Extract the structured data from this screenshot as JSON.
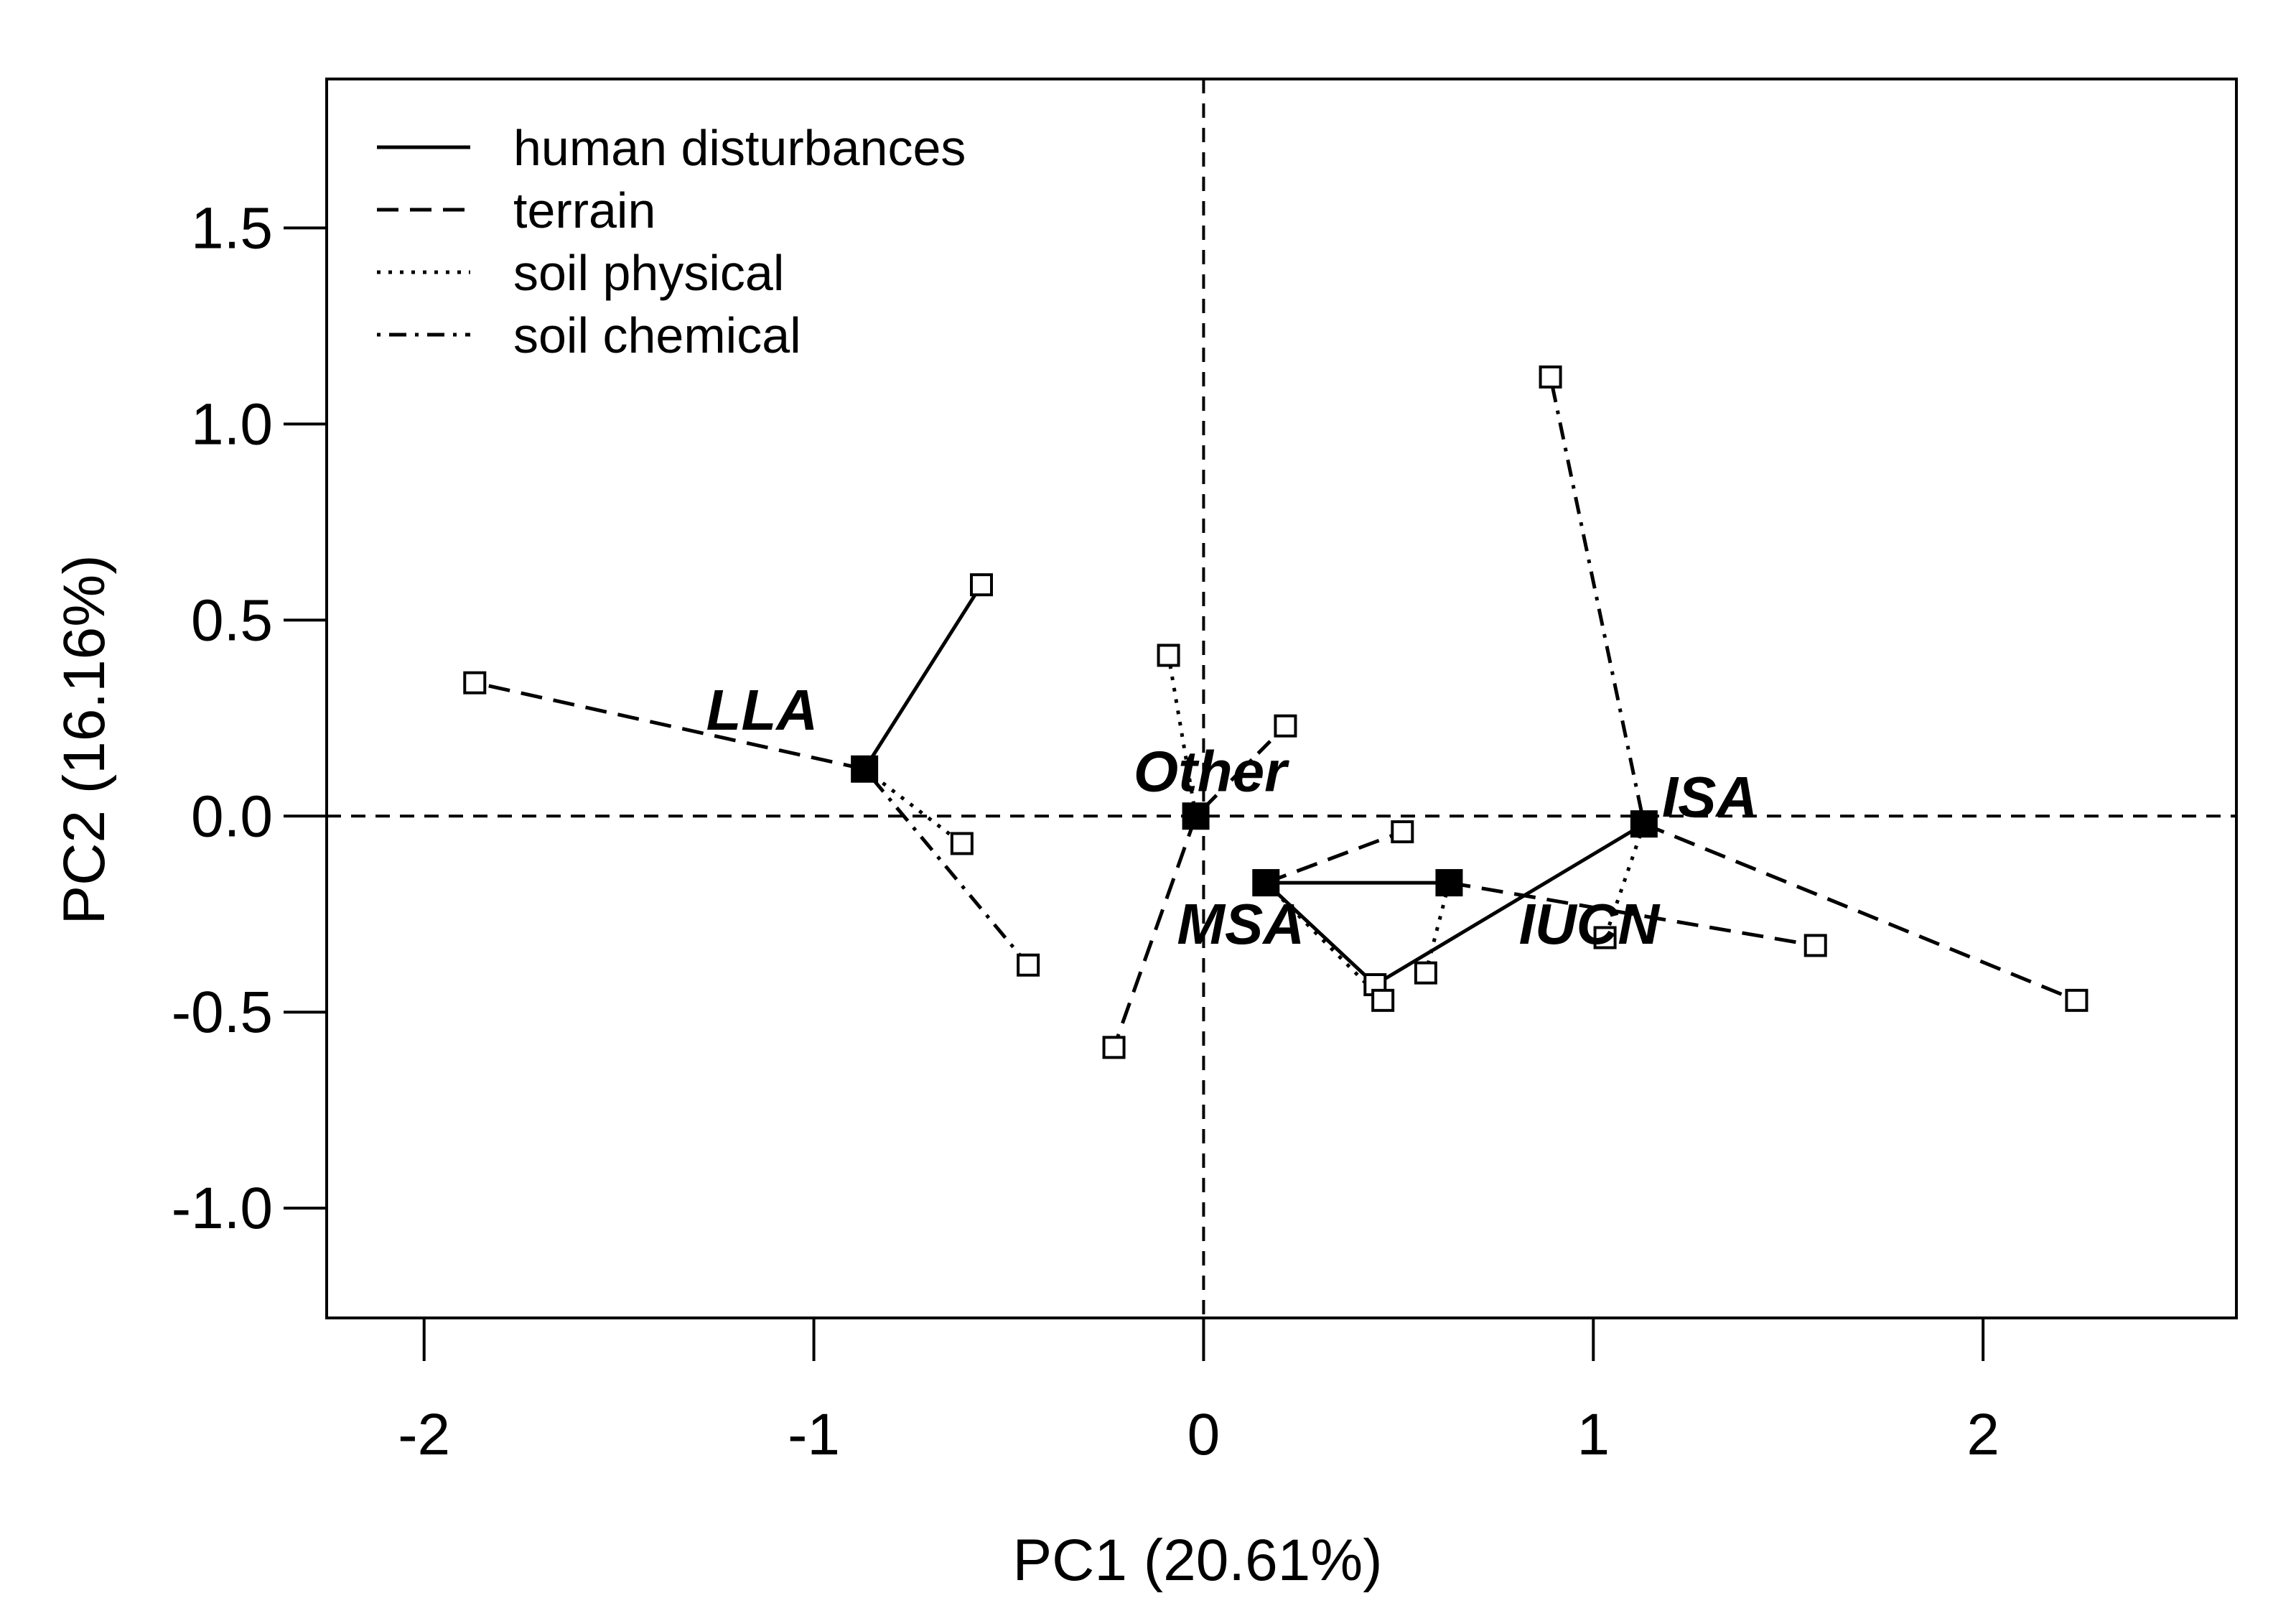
{
  "chart_data": {
    "type": "scatter",
    "title": "",
    "xlabel": "PC1 (20.61%)",
    "ylabel": "PC2 (16.16%)",
    "xlim": [
      -2.25,
      2.65
    ],
    "ylim": [
      -1.28,
      1.88
    ],
    "xticks": [
      -2,
      -1,
      0,
      1,
      2
    ],
    "xtick_labels": [
      "-2",
      "-1",
      "0",
      "1",
      "2"
    ],
    "yticks": [
      -1.0,
      -0.5,
      0.0,
      0.5,
      1.0,
      1.5
    ],
    "ytick_labels": [
      "-1.0",
      "-0.5",
      "0.0",
      "0.5",
      "1.0",
      "1.5"
    ],
    "reference_lines": {
      "x": 0,
      "y": 0
    },
    "legend": {
      "position": "top-left",
      "entries": [
        {
          "label": "human disturbances",
          "style": "solid"
        },
        {
          "label": "terrain",
          "style": "dashed"
        },
        {
          "label": "soil physical",
          "style": "dotted"
        },
        {
          "label": "soil chemical",
          "style": "dotdash"
        }
      ]
    },
    "groups": [
      {
        "name": "LLA",
        "centroid": [
          -0.87,
          0.12
        ],
        "human disturbances": [
          -0.57,
          0.59
        ],
        "terrain": [
          -1.87,
          0.34
        ],
        "soil physical": [
          -0.62,
          -0.07
        ],
        "soil chemical": [
          -0.45,
          -0.38
        ]
      },
      {
        "name": "Other",
        "centroid": [
          -0.02,
          0.0
        ],
        "human disturbances": [
          -0.02,
          0.0
        ],
        "terrain": [
          -0.23,
          -0.59
        ],
        "soil physical": [
          -0.09,
          0.41
        ],
        "soil chemical": [
          0.21,
          0.23
        ]
      },
      {
        "name": "MSA",
        "centroid": [
          0.16,
          -0.17
        ],
        "human disturbances": [
          0.44,
          -0.43
        ],
        "terrain": [
          0.51,
          -0.04
        ],
        "soil physical": [
          0.46,
          -0.47
        ],
        "soil chemical": [
          0.16,
          -0.17
        ]
      },
      {
        "name": "IUCN",
        "centroid": [
          0.63,
          -0.17
        ],
        "human disturbances": [
          0.16,
          -0.17
        ],
        "terrain": [
          1.57,
          -0.33
        ],
        "soil physical": [
          0.57,
          -0.4
        ],
        "soil chemical": [
          0.63,
          -0.17
        ]
      },
      {
        "name": "ISA",
        "centroid": [
          1.13,
          -0.02
        ],
        "human disturbances": [
          0.44,
          -0.43
        ],
        "terrain": [
          2.24,
          -0.47
        ],
        "soil physical": [
          1.03,
          -0.31
        ],
        "soil chemical": [
          0.89,
          1.12
        ]
      }
    ]
  }
}
